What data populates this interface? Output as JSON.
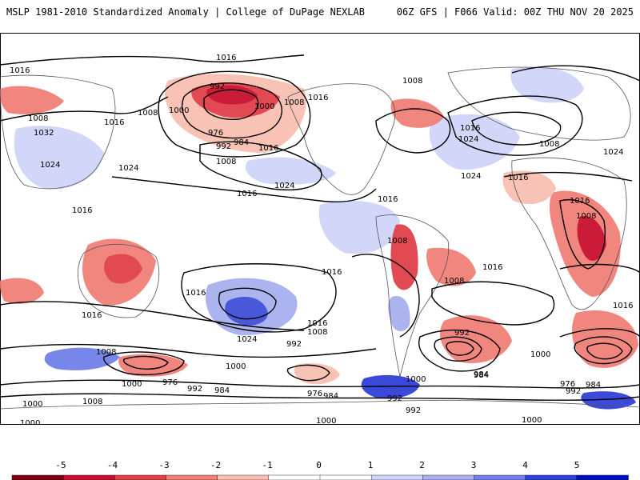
{
  "header": {
    "left_title": "MSLP 1981-2010 Standardized Anomaly | College of DuPage NEXLAB",
    "right_title": "06Z GFS | F066 Valid: 00Z THU NOV 20 2025"
  },
  "map": {
    "contour_labels": [
      {
        "id": "c1",
        "text": "1016"
      },
      {
        "id": "c2",
        "text": "1016"
      },
      {
        "id": "c3",
        "text": "1008"
      },
      {
        "id": "c4",
        "text": "1016"
      },
      {
        "id": "c5",
        "text": "1032"
      },
      {
        "id": "c6",
        "text": "1024"
      },
      {
        "id": "c7",
        "text": "1024"
      },
      {
        "id": "c8",
        "text": "1016"
      },
      {
        "id": "c9",
        "text": "992"
      },
      {
        "id": "c10",
        "text": "1008"
      },
      {
        "id": "c11",
        "text": "1000"
      },
      {
        "id": "c12",
        "text": "1000"
      },
      {
        "id": "c13",
        "text": "1008"
      },
      {
        "id": "c14",
        "text": "1016"
      },
      {
        "id": "c15",
        "text": "976"
      },
      {
        "id": "c16",
        "text": "992"
      },
      {
        "id": "c17",
        "text": "984"
      },
      {
        "id": "c18",
        "text": "1016"
      },
      {
        "id": "c19",
        "text": "1008"
      },
      {
        "id": "c20",
        "text": "1024"
      },
      {
        "id": "c21",
        "text": "1016"
      },
      {
        "id": "c22",
        "text": "1008"
      },
      {
        "id": "c23",
        "text": "1016"
      },
      {
        "id": "c24",
        "text": "1024"
      },
      {
        "id": "c25",
        "text": "1024"
      },
      {
        "id": "c26",
        "text": "1016"
      },
      {
        "id": "c27",
        "text": "1008"
      },
      {
        "id": "c28",
        "text": "1024"
      },
      {
        "id": "c29",
        "text": "1016"
      },
      {
        "id": "c30",
        "text": "1016"
      },
      {
        "id": "c31",
        "text": "1008"
      },
      {
        "id": "c32",
        "text": "1008"
      },
      {
        "id": "c33",
        "text": "1008"
      },
      {
        "id": "c34",
        "text": "1016"
      },
      {
        "id": "c35",
        "text": "1016"
      },
      {
        "id": "c36",
        "text": "1016"
      },
      {
        "id": "c37",
        "text": "1016"
      },
      {
        "id": "c38",
        "text": "1024"
      },
      {
        "id": "c39",
        "text": "1016"
      },
      {
        "id": "c40",
        "text": "1008"
      },
      {
        "id": "c41",
        "text": "992"
      },
      {
        "id": "c42",
        "text": "1008"
      },
      {
        "id": "c43",
        "text": "1000"
      },
      {
        "id": "c44",
        "text": "1000"
      },
      {
        "id": "c45",
        "text": "976"
      },
      {
        "id": "c46",
        "text": "992"
      },
      {
        "id": "c47",
        "text": "984"
      },
      {
        "id": "c48",
        "text": "976"
      },
      {
        "id": "c49",
        "text": "984"
      },
      {
        "id": "c50",
        "text": "992"
      },
      {
        "id": "c51",
        "text": "992"
      },
      {
        "id": "c52",
        "text": "1000"
      },
      {
        "id": "c53",
        "text": "992"
      },
      {
        "id": "c54",
        "text": "984"
      },
      {
        "id": "c55",
        "text": "1000"
      },
      {
        "id": "c56",
        "text": "976"
      },
      {
        "id": "c57",
        "text": "984"
      },
      {
        "id": "c58",
        "text": "992"
      },
      {
        "id": "c59",
        "text": "1000"
      },
      {
        "id": "c60",
        "text": "1008"
      },
      {
        "id": "c61",
        "text": "1000"
      },
      {
        "id": "c62",
        "text": "1016"
      },
      {
        "id": "c63",
        "text": "1000"
      },
      {
        "id": "c64",
        "text": "1000"
      },
      {
        "id": "c65",
        "text": "984"
      }
    ],
    "colors": {
      "neg5": "#7a0010",
      "neg4": "#c8102e",
      "neg3": "#e0404a",
      "neg2": "#f08078",
      "neg1": "#f8c0b0",
      "pos1": "#d0d4f8",
      "pos2": "#a8b0f0",
      "pos3": "#7080e8",
      "pos4": "#3040d8",
      "pos5": "#0010c0"
    }
  },
  "colorbar": {
    "ticks": [
      "-5",
      "-4",
      "-3",
      "-2",
      "-1",
      "0",
      "1",
      "2",
      "3",
      "4",
      "5"
    ],
    "colors": [
      "#7a0010",
      "#c8102e",
      "#e0404a",
      "#f08078",
      "#f8c0b0",
      "#ffffff",
      "#ffffff",
      "#d0d4f8",
      "#a8b0f0",
      "#7080e8",
      "#3040d8",
      "#0010c0"
    ]
  }
}
